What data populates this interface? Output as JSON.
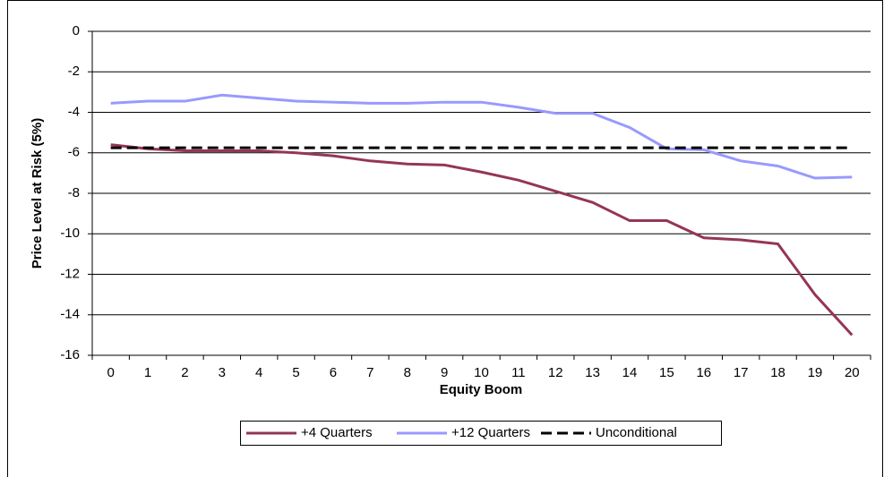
{
  "chart_data": {
    "type": "line",
    "x_label": "Equity Boom",
    "y_label": "Price Level at Risk (5%)",
    "categories": [
      "0",
      "1",
      "2",
      "3",
      "4",
      "5",
      "6",
      "7",
      "8",
      "9",
      "10",
      "11",
      "12",
      "13",
      "14",
      "15",
      "16",
      "17",
      "18",
      "19",
      "20"
    ],
    "series": [
      {
        "name": "+4 Quarters",
        "color": "#953558",
        "dash": "solid",
        "values": [
          -5.6,
          -5.8,
          -5.9,
          -5.9,
          -5.9,
          -6.0,
          -6.15,
          -6.4,
          -6.55,
          -6.6,
          -6.95,
          -7.35,
          -7.9,
          -8.45,
          -9.35,
          -9.35,
          -10.2,
          -10.3,
          -10.5,
          -13.0,
          -15.0
        ]
      },
      {
        "name": "+12 Quarters",
        "color": "#9999ff",
        "dash": "solid",
        "values": [
          -3.55,
          -3.45,
          -3.45,
          -3.15,
          -3.3,
          -3.45,
          -3.5,
          -3.55,
          -3.55,
          -3.5,
          -3.5,
          -3.75,
          -4.05,
          -4.05,
          -4.75,
          -5.8,
          -5.85,
          -6.4,
          -6.65,
          -7.25,
          -7.2
        ]
      },
      {
        "name": "Unconditional",
        "color": "#000000",
        "dash": "dashed",
        "values": [
          -5.75,
          -5.75,
          -5.75,
          -5.75,
          -5.75,
          -5.75,
          -5.75,
          -5.75,
          -5.75,
          -5.75,
          -5.75,
          -5.75,
          -5.75,
          -5.75,
          -5.75,
          -5.75,
          -5.75,
          -5.75,
          -5.75,
          -5.75,
          -5.75
        ]
      }
    ],
    "ylim": [
      -16,
      0
    ],
    "yticks": [
      0,
      -2,
      -4,
      -6,
      -8,
      -10,
      -12,
      -14,
      -16
    ],
    "grid": true,
    "legend": "bottom"
  }
}
